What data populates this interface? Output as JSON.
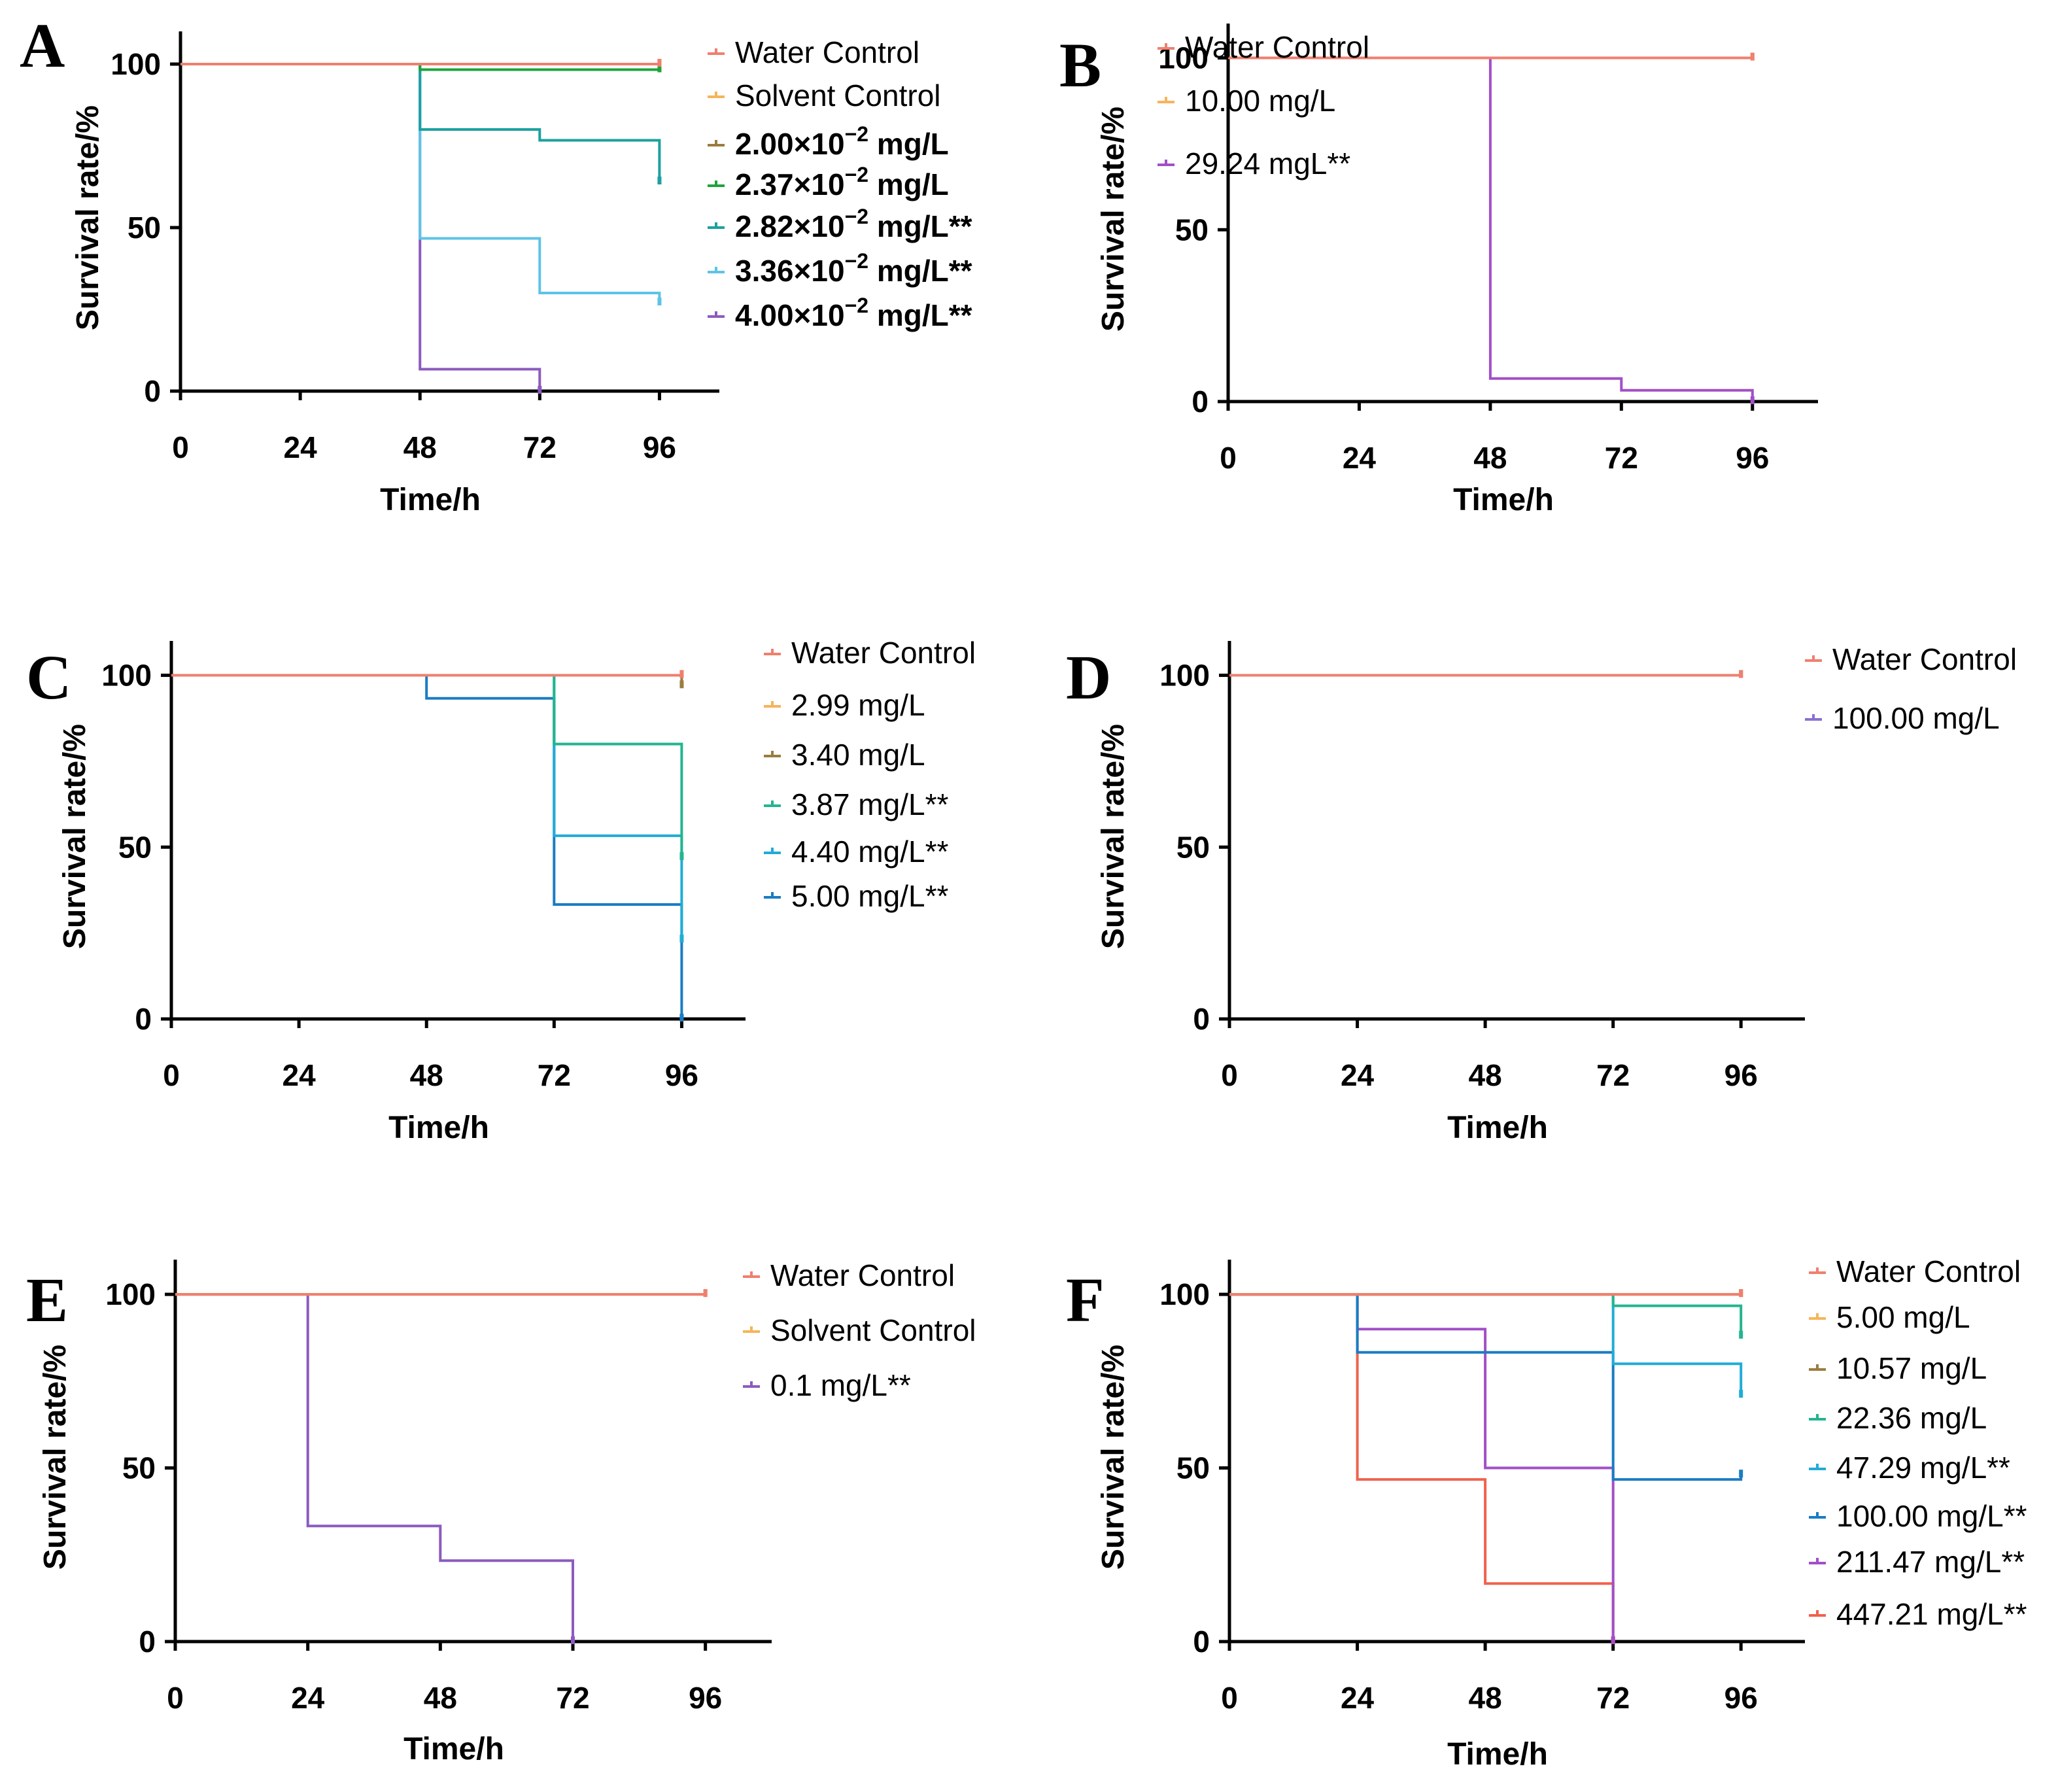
{
  "figure": {
    "type": "multi-panel survival curves"
  },
  "chart_data": [
    {
      "panel": "A",
      "type": "line",
      "step": true,
      "xlabel": "Time/h",
      "ylabel": "Survival rate/%",
      "xticks": [
        "0",
        "24",
        "48",
        "72",
        "96"
      ],
      "yticks": [
        "0",
        "50",
        "100"
      ],
      "xlim": [
        0,
        108
      ],
      "ylim": [
        0,
        110
      ],
      "legend_bold": true,
      "series": [
        {
          "name": "Water Control",
          "label": "Water Control",
          "color": "#f07f6e",
          "points": [
            [
              0,
              100
            ],
            [
              96,
              100
            ]
          ]
        },
        {
          "name": "Solvent Control",
          "label": "Solvent Control",
          "color": "#f6b45a",
          "points": [
            [
              0,
              100
            ],
            [
              96,
              100
            ]
          ]
        },
        {
          "name": "2.00×10^-2 mg/L",
          "label": "2.00×10",
          "sup": "−2",
          "suffix": " mg/L",
          "color": "#9a7d3e",
          "points": [
            [
              0,
              100
            ],
            [
              96,
              100
            ]
          ]
        },
        {
          "name": "2.37×10^-2 mg/L",
          "label": "2.37×10",
          "sup": "−2",
          "suffix": " mg/L",
          "color": "#1fa33a",
          "points": [
            [
              0,
              100
            ],
            [
              48,
              100
            ],
            [
              48,
              98.3
            ],
            [
              96,
              98.3
            ]
          ]
        },
        {
          "name": "2.82×10^-2 mg/L**",
          "label": "2.82×10",
          "sup": "−2",
          "suffix": " mg/L**",
          "color": "#1ba1a0",
          "points": [
            [
              0,
              100
            ],
            [
              48,
              100
            ],
            [
              48,
              80
            ],
            [
              72,
              80
            ],
            [
              72,
              76.7
            ],
            [
              96,
              76.7
            ],
            [
              96,
              64
            ]
          ]
        },
        {
          "name": "3.36×10^-2 mg/L**",
          "label": "3.36×10",
          "sup": "−2",
          "suffix": " mg/L**",
          "color": "#5ec3e6",
          "points": [
            [
              0,
              100
            ],
            [
              48,
              100
            ],
            [
              48,
              46.7
            ],
            [
              72,
              46.7
            ],
            [
              72,
              30
            ],
            [
              96,
              30
            ],
            [
              96,
              27
            ]
          ]
        },
        {
          "name": "4.00×10^-2 mg/L**",
          "label": "4.00×10",
          "sup": "−2",
          "suffix": " mg/L**",
          "color": "#8c5bbf",
          "points": [
            [
              0,
              100
            ],
            [
              48,
              100
            ],
            [
              48,
              6.7
            ],
            [
              72,
              6.7
            ],
            [
              72,
              0
            ]
          ]
        }
      ]
    },
    {
      "panel": "B",
      "type": "line",
      "step": true,
      "xlabel": "Time/h",
      "ylabel": "Survival rate/%",
      "xticks": [
        "0",
        "24",
        "48",
        "72",
        "96"
      ],
      "yticks": [
        "0",
        "50",
        "100"
      ],
      "xlim": [
        0,
        108
      ],
      "ylim": [
        0,
        110
      ],
      "legend_bold": false,
      "series": [
        {
          "name": "Water Control",
          "label": "Water Control",
          "color": "#f07f6e",
          "points": [
            [
              0,
              100
            ],
            [
              96,
              100
            ]
          ]
        },
        {
          "name": "10.00 mg/L",
          "label": "10.00 mg/L",
          "color": "#f6b45a",
          "points": [
            [
              0,
              100
            ],
            [
              96,
              100
            ]
          ]
        },
        {
          "name": "29.24 mgL**",
          "label": "29.24 mgL**",
          "color": "#a24fc7",
          "points": [
            [
              0,
              100
            ],
            [
              48,
              100
            ],
            [
              48,
              6.7
            ],
            [
              72,
              6.7
            ],
            [
              72,
              3.3
            ],
            [
              96,
              3.3
            ],
            [
              96,
              0
            ]
          ]
        }
      ]
    },
    {
      "panel": "C",
      "type": "line",
      "step": true,
      "xlabel": "Time/h",
      "ylabel": "Survival rate/%",
      "xticks": [
        "0",
        "24",
        "48",
        "72",
        "96"
      ],
      "yticks": [
        "0",
        "50",
        "100"
      ],
      "xlim": [
        0,
        108
      ],
      "ylim": [
        0,
        110
      ],
      "legend_bold": false,
      "series": [
        {
          "name": "Water Control",
          "label": "Water Control",
          "color": "#f07f6e",
          "points": [
            [
              0,
              100
            ],
            [
              96,
              100
            ]
          ]
        },
        {
          "name": "2.99 mg/L",
          "label": "2.99 mg/L",
          "color": "#f6b45a",
          "points": [
            [
              0,
              100
            ],
            [
              96,
              100
            ]
          ]
        },
        {
          "name": "3.40 mg/L",
          "label": "3.40 mg/L",
          "color": "#9a7d3e",
          "points": [
            [
              0,
              100
            ],
            [
              96,
              100
            ],
            [
              96,
              97
            ]
          ]
        },
        {
          "name": "3.87 mg/L**",
          "label": "3.87 mg/L**",
          "color": "#23b58f",
          "points": [
            [
              0,
              100
            ],
            [
              72,
              100
            ],
            [
              72,
              80
            ],
            [
              96,
              80
            ],
            [
              96,
              47
            ]
          ]
        },
        {
          "name": "4.40 mg/L**",
          "label": "4.40 mg/L**",
          "color": "#20acd6",
          "points": [
            [
              0,
              100
            ],
            [
              72,
              100
            ],
            [
              72,
              53.3
            ],
            [
              96,
              53.3
            ],
            [
              96,
              23
            ]
          ]
        },
        {
          "name": "5.00 mg/L**",
          "label": "5.00 mg/L**",
          "color": "#1a7cc4",
          "points": [
            [
              0,
              100
            ],
            [
              48,
              100
            ],
            [
              48,
              93.3
            ],
            [
              72,
              93.3
            ],
            [
              72,
              33.3
            ],
            [
              96,
              33.3
            ],
            [
              96,
              0
            ]
          ]
        }
      ]
    },
    {
      "panel": "D",
      "type": "line",
      "step": true,
      "xlabel": "Time/h",
      "ylabel": "Survival rate/%",
      "xticks": [
        "0",
        "24",
        "48",
        "72",
        "96"
      ],
      "yticks": [
        "0",
        "50",
        "100"
      ],
      "xlim": [
        0,
        108
      ],
      "ylim": [
        0,
        110
      ],
      "legend_bold": false,
      "series": [
        {
          "name": "Water Control",
          "label": "Water Control",
          "color": "#f07f6e",
          "points": [
            [
              0,
              100
            ],
            [
              96,
              100
            ]
          ]
        },
        {
          "name": "100.00 mg/L",
          "label": "100.00 mg/L",
          "color": "#8a6fd0",
          "points": [
            [
              0,
              100
            ],
            [
              96,
              100
            ]
          ]
        }
      ]
    },
    {
      "panel": "E",
      "type": "line",
      "step": true,
      "xlabel": "Time/h",
      "ylabel": "Survival rate/%",
      "xticks": [
        "0",
        "24",
        "48",
        "72",
        "96"
      ],
      "yticks": [
        "0",
        "50",
        "100"
      ],
      "xlim": [
        0,
        108
      ],
      "ylim": [
        0,
        110
      ],
      "legend_bold": false,
      "series": [
        {
          "name": "Water Control",
          "label": "Water Control",
          "color": "#f07f6e",
          "points": [
            [
              0,
              100
            ],
            [
              96,
              100
            ]
          ]
        },
        {
          "name": "Solvent Control",
          "label": "Solvent Control",
          "color": "#f6b45a",
          "points": [
            [
              0,
              100
            ],
            [
              96,
              100
            ]
          ]
        },
        {
          "name": "0.1 mg/L**",
          "label": "0.1 mg/L**",
          "color": "#8c5bbf",
          "points": [
            [
              0,
              100
            ],
            [
              24,
              100
            ],
            [
              24,
              33.3
            ],
            [
              48,
              33.3
            ],
            [
              48,
              23.3
            ],
            [
              72,
              23.3
            ],
            [
              72,
              0
            ]
          ]
        }
      ]
    },
    {
      "panel": "F",
      "type": "line",
      "step": true,
      "xlabel": "Time/h",
      "ylabel": "Survival rate/%",
      "xticks": [
        "0",
        "24",
        "48",
        "72",
        "96"
      ],
      "yticks": [
        "0",
        "50",
        "100"
      ],
      "xlim": [
        0,
        108
      ],
      "ylim": [
        0,
        110
      ],
      "legend_bold": false,
      "series": [
        {
          "name": "Water Control",
          "label": "Water Control",
          "color": "#f07f6e",
          "points": [
            [
              0,
              100
            ],
            [
              96,
              100
            ]
          ]
        },
        {
          "name": "5.00 mg/L",
          "label": "5.00 mg/L",
          "color": "#f6b45a",
          "points": [
            [
              0,
              100
            ],
            [
              96,
              100
            ]
          ]
        },
        {
          "name": "10.57 mg/L",
          "label": "10.57 mg/L",
          "color": "#9a7d3e",
          "points": [
            [
              0,
              100
            ],
            [
              96,
              100
            ]
          ]
        },
        {
          "name": "22.36 mg/L",
          "label": "22.36 mg/L",
          "color": "#23b58f",
          "points": [
            [
              0,
              100
            ],
            [
              72,
              100
            ],
            [
              72,
              96.7
            ],
            [
              96,
              96.7
            ],
            [
              96,
              88
            ]
          ]
        },
        {
          "name": "47.29 mg/L**",
          "label": "47.29 mg/L**",
          "color": "#20acd6",
          "points": [
            [
              0,
              100
            ],
            [
              72,
              100
            ],
            [
              72,
              80
            ],
            [
              96,
              80
            ],
            [
              96,
              71
            ]
          ]
        },
        {
          "name": "100.00 mg/L**",
          "label": "100.00 mg/L**",
          "color": "#1a7cc4",
          "points": [
            [
              0,
              100
            ],
            [
              24,
              100
            ],
            [
              24,
              83.3
            ],
            [
              72,
              83.3
            ],
            [
              72,
              46.7
            ],
            [
              96,
              46.7
            ],
            [
              96,
              48
            ]
          ]
        },
        {
          "name": "211.47 mg/L**",
          "label": "211.47 mg/L**",
          "color": "#a24fc7",
          "points": [
            [
              0,
              100
            ],
            [
              24,
              100
            ],
            [
              24,
              90
            ],
            [
              48,
              90
            ],
            [
              48,
              50
            ],
            [
              72,
              50
            ],
            [
              72,
              0
            ]
          ]
        },
        {
          "name": "447.21 mg/L**",
          "label": "447.21 mg/L**",
          "color": "#f0624e",
          "points": [
            [
              0,
              100
            ],
            [
              24,
              100
            ],
            [
              24,
              46.7
            ],
            [
              48,
              46.7
            ],
            [
              48,
              16.7
            ],
            [
              72,
              16.7
            ],
            [
              72,
              0
            ]
          ]
        }
      ]
    }
  ]
}
